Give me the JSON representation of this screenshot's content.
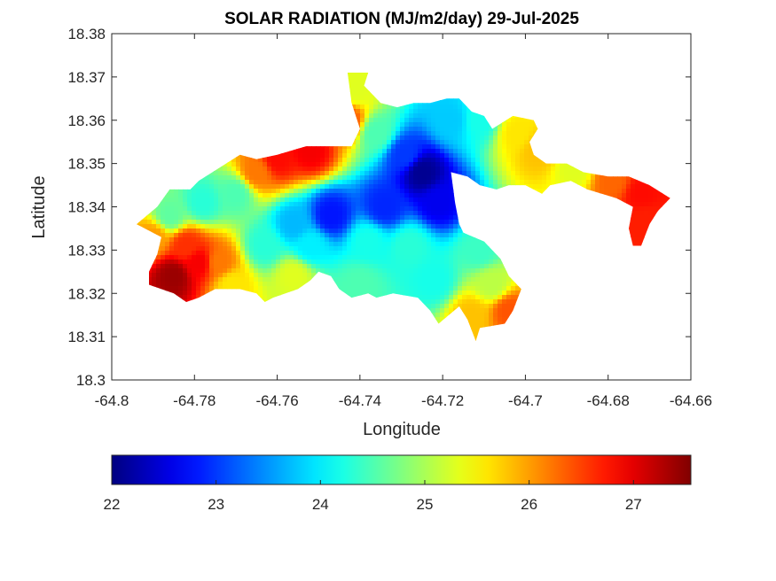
{
  "chart_data": {
    "type": "heatmap",
    "title": "SOLAR RADIATION (MJ/m2/day) 29-Jul-2025",
    "xlabel": "Longitude",
    "ylabel": "Latitude",
    "xlim": [
      -64.8,
      -64.66
    ],
    "ylim": [
      18.3,
      18.38
    ],
    "xticks": [
      -64.8,
      -64.78,
      -64.76,
      -64.74,
      -64.72,
      -64.7,
      -64.68,
      -64.66
    ],
    "yticks": [
      18.3,
      18.31,
      18.32,
      18.33,
      18.34,
      18.35,
      18.36,
      18.37,
      18.38
    ],
    "xtick_labels": [
      "-64.8",
      "-64.78",
      "-64.76",
      "-64.74",
      "-64.72",
      "-64.7",
      "-64.68",
      "-64.66"
    ],
    "ytick_labels": [
      "18.3",
      "18.31",
      "18.32",
      "18.33",
      "18.34",
      "18.35",
      "18.36",
      "18.37",
      "18.38"
    ],
    "colormap": "jet",
    "clim": [
      22,
      27.55
    ],
    "colorbar": {
      "orientation": "horizontal",
      "placement": "bottom",
      "ticks": [
        22,
        23,
        24,
        25,
        26,
        27
      ],
      "tick_labels": [
        "22",
        "23",
        "24",
        "25",
        "26",
        "27"
      ]
    },
    "grid": false,
    "outline": [
      [
        -64.791,
        18.322
      ],
      [
        -64.791,
        18.325
      ],
      [
        -64.789,
        18.329
      ],
      [
        -64.788,
        18.333
      ],
      [
        -64.794,
        18.336
      ],
      [
        -64.789,
        18.34
      ],
      [
        -64.786,
        18.344
      ],
      [
        -64.781,
        18.344
      ],
      [
        -64.779,
        18.346
      ],
      [
        -64.774,
        18.349
      ],
      [
        -64.769,
        18.352
      ],
      [
        -64.765,
        18.351
      ],
      [
        -64.76,
        18.352
      ],
      [
        -64.753,
        18.354
      ],
      [
        -64.749,
        18.354
      ],
      [
        -64.742,
        18.354
      ],
      [
        -64.74,
        18.358
      ],
      [
        -64.742,
        18.364
      ],
      [
        -64.743,
        18.371
      ],
      [
        -64.738,
        18.371
      ],
      [
        -64.739,
        18.368
      ],
      [
        -64.735,
        18.364
      ],
      [
        -64.731,
        18.363
      ],
      [
        -64.727,
        18.364
      ],
      [
        -64.723,
        18.364
      ],
      [
        -64.719,
        18.365
      ],
      [
        -64.716,
        18.365
      ],
      [
        -64.713,
        18.362
      ],
      [
        -64.71,
        18.361
      ],
      [
        -64.708,
        18.358
      ],
      [
        -64.703,
        18.361
      ],
      [
        -64.698,
        18.36
      ],
      [
        -64.697,
        18.358
      ],
      [
        -64.699,
        18.355
      ],
      [
        -64.698,
        18.352
      ],
      [
        -64.695,
        18.35
      ],
      [
        -64.69,
        18.35
      ],
      [
        -64.686,
        18.348
      ],
      [
        -64.68,
        18.347
      ],
      [
        -64.675,
        18.347
      ],
      [
        -64.67,
        18.345
      ],
      [
        -64.665,
        18.342
      ],
      [
        -64.668,
        18.339
      ],
      [
        -64.67,
        18.336
      ],
      [
        -64.672,
        18.331
      ],
      [
        -64.674,
        18.331
      ],
      [
        -64.675,
        18.335
      ],
      [
        -64.674,
        18.34
      ],
      [
        -64.678,
        18.342
      ],
      [
        -64.685,
        18.344
      ],
      [
        -64.689,
        18.346
      ],
      [
        -64.694,
        18.345
      ],
      [
        -64.696,
        18.343
      ],
      [
        -64.7,
        18.345
      ],
      [
        -64.704,
        18.345
      ],
      [
        -64.707,
        18.344
      ],
      [
        -64.711,
        18.345
      ],
      [
        -64.714,
        18.347
      ],
      [
        -64.718,
        18.348
      ],
      [
        -64.717,
        18.341
      ],
      [
        -64.716,
        18.336
      ],
      [
        -64.715,
        18.334
      ],
      [
        -64.71,
        18.332
      ],
      [
        -64.706,
        18.328
      ],
      [
        -64.704,
        18.324
      ],
      [
        -64.701,
        18.321
      ],
      [
        -64.703,
        18.316
      ],
      [
        -64.705,
        18.313
      ],
      [
        -64.711,
        18.312
      ],
      [
        -64.712,
        18.309
      ],
      [
        -64.714,
        18.314
      ],
      [
        -64.716,
        18.317
      ],
      [
        -64.721,
        18.313
      ],
      [
        -64.723,
        18.316
      ],
      [
        -64.726,
        18.319
      ],
      [
        -64.732,
        18.32
      ],
      [
        -64.736,
        18.319
      ],
      [
        -64.738,
        18.32
      ],
      [
        -64.742,
        18.319
      ],
      [
        -64.745,
        18.321
      ],
      [
        -64.747,
        18.324
      ],
      [
        -64.75,
        18.325
      ],
      [
        -64.752,
        18.323
      ],
      [
        -64.755,
        18.321
      ],
      [
        -64.758,
        18.32
      ],
      [
        -64.761,
        18.319
      ],
      [
        -64.763,
        18.318
      ],
      [
        -64.765,
        18.32
      ],
      [
        -64.769,
        18.321
      ],
      [
        -64.772,
        18.321
      ],
      [
        -64.775,
        18.321
      ],
      [
        -64.777,
        18.32
      ],
      [
        -64.779,
        18.319
      ],
      [
        -64.782,
        18.318
      ],
      [
        -64.785,
        18.32
      ],
      [
        -64.788,
        18.321
      ]
    ],
    "values": [
      {
        "lon": -64.785,
        "lat": 18.324,
        "value": 27.4
      },
      {
        "lon": -64.779,
        "lat": 18.327,
        "value": 26.9
      },
      {
        "lon": -64.782,
        "lat": 18.331,
        "value": 26.6
      },
      {
        "lon": -64.774,
        "lat": 18.327,
        "value": 26.2
      },
      {
        "lon": -64.79,
        "lat": 18.333,
        "value": 26.0
      },
      {
        "lon": -64.771,
        "lat": 18.322,
        "value": 25.6
      },
      {
        "lon": -64.786,
        "lat": 18.338,
        "value": 24.6
      },
      {
        "lon": -64.778,
        "lat": 18.341,
        "value": 24.3
      },
      {
        "lon": -64.77,
        "lat": 18.343,
        "value": 24.5
      },
      {
        "lon": -64.765,
        "lat": 18.348,
        "value": 26.2
      },
      {
        "lon": -64.76,
        "lat": 18.351,
        "value": 26.8
      },
      {
        "lon": -64.752,
        "lat": 18.353,
        "value": 26.9
      },
      {
        "lon": -64.743,
        "lat": 18.36,
        "value": 26.4
      },
      {
        "lon": -64.741,
        "lat": 18.367,
        "value": 25.3
      },
      {
        "lon": -64.736,
        "lat": 18.357,
        "value": 24.5
      },
      {
        "lon": -64.729,
        "lat": 18.352,
        "value": 23.0
      },
      {
        "lon": -64.725,
        "lat": 18.348,
        "value": 22.1
      },
      {
        "lon": -64.721,
        "lat": 18.341,
        "value": 22.6
      },
      {
        "lon": -64.734,
        "lat": 18.34,
        "value": 22.9
      },
      {
        "lon": -64.747,
        "lat": 18.338,
        "value": 22.8
      },
      {
        "lon": -64.756,
        "lat": 18.336,
        "value": 23.7
      },
      {
        "lon": -64.763,
        "lat": 18.331,
        "value": 24.3
      },
      {
        "lon": -64.752,
        "lat": 18.331,
        "value": 24.0
      },
      {
        "lon": -64.738,
        "lat": 18.332,
        "value": 24.2
      },
      {
        "lon": -64.728,
        "lat": 18.331,
        "value": 24.3
      },
      {
        "lon": -64.722,
        "lat": 18.323,
        "value": 24.2
      },
      {
        "lon": -64.711,
        "lat": 18.33,
        "value": 24.4
      },
      {
        "lon": -64.708,
        "lat": 18.322,
        "value": 25.1
      },
      {
        "lon": -64.704,
        "lat": 18.316,
        "value": 26.4
      },
      {
        "lon": -64.713,
        "lat": 18.315,
        "value": 25.8
      },
      {
        "lon": -64.718,
        "lat": 18.36,
        "value": 23.8
      },
      {
        "lon": -64.711,
        "lat": 18.36,
        "value": 24.2
      },
      {
        "lon": -64.74,
        "lat": 18.322,
        "value": 24.5
      },
      {
        "lon": -64.756,
        "lat": 18.324,
        "value": 25.3
      },
      {
        "lon": -64.702,
        "lat": 18.357,
        "value": 25.6
      },
      {
        "lon": -64.697,
        "lat": 18.353,
        "value": 25.8
      },
      {
        "lon": -64.688,
        "lat": 18.349,
        "value": 25.3
      },
      {
        "lon": -64.679,
        "lat": 18.346,
        "value": 26.3
      },
      {
        "lon": -64.672,
        "lat": 18.343,
        "value": 26.8
      },
      {
        "lon": -64.671,
        "lat": 18.337,
        "value": 26.7
      }
    ]
  }
}
